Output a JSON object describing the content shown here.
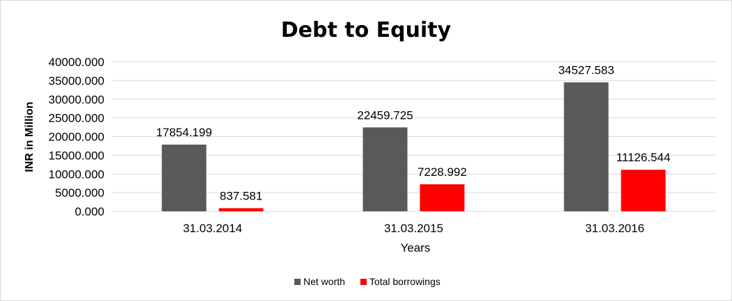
{
  "chart_data": {
    "type": "bar",
    "title": "Debt to Equity",
    "xlabel": "Years",
    "ylabel": "INR in Million",
    "categories": [
      "31.03.2014",
      "31.03.2015",
      "31.03.2016"
    ],
    "series": [
      {
        "name": "Net worth",
        "color": "#595959",
        "values": [
          17854.199,
          22459.725,
          34527.583
        ],
        "labels": [
          "17854.199",
          "22459.725",
          "34527.583"
        ]
      },
      {
        "name": "Total borrowings",
        "color": "#ff0000",
        "values": [
          837.581,
          7228.992,
          11126.544
        ],
        "labels": [
          "837.581",
          "7228.992",
          "11126.544"
        ]
      }
    ],
    "ylim": [
      0,
      40000
    ],
    "yticks": [
      "0.000",
      "5000.000",
      "10000.000",
      "15000.000",
      "20000.000",
      "25000.000",
      "30000.000",
      "35000.000",
      "40000.000"
    ],
    "grid": true,
    "legend_position": "bottom"
  }
}
